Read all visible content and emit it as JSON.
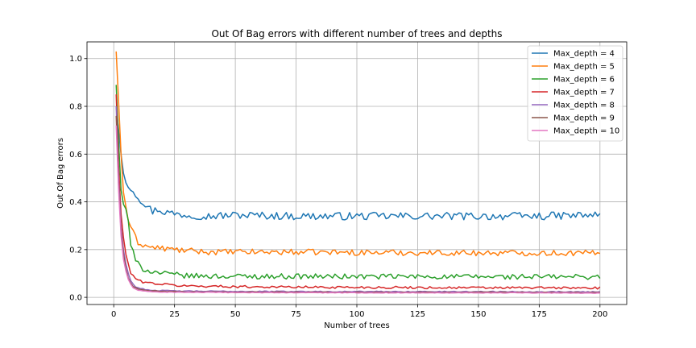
{
  "chart_data": {
    "type": "line",
    "title": "Out Of Bag errors with different number of trees and depths",
    "xlabel": "Number of trees",
    "ylabel": "Out Of Bag errors",
    "xlim": [
      -11,
      211
    ],
    "ylim": [
      -0.03,
      1.07
    ],
    "xticks": [
      0,
      25,
      50,
      75,
      100,
      125,
      150,
      175,
      200
    ],
    "yticks": [
      0.0,
      0.2,
      0.4,
      0.6,
      0.8,
      1.0
    ],
    "ytick_labels": [
      "0.0",
      "0.2",
      "0.4",
      "0.6",
      "0.8",
      "1.0"
    ],
    "grid": true,
    "legend_position": "top-right",
    "x_range": [
      1,
      200
    ],
    "series": [
      {
        "name": "Max_depth = 4",
        "color": "#1f77b4",
        "points": [
          [
            1,
            0.8
          ],
          [
            2,
            0.7
          ],
          [
            3,
            0.6
          ],
          [
            4,
            0.52
          ],
          [
            5,
            0.48
          ],
          [
            6,
            0.46
          ],
          [
            7,
            0.455
          ],
          [
            8,
            0.455
          ],
          [
            9,
            0.43
          ],
          [
            10,
            0.42
          ],
          [
            12,
            0.4
          ],
          [
            14,
            0.38
          ],
          [
            16,
            0.36
          ],
          [
            18,
            0.37
          ],
          [
            20,
            0.36
          ],
          [
            25,
            0.35
          ],
          [
            30,
            0.345
          ],
          [
            40,
            0.34
          ],
          [
            50,
            0.345
          ],
          [
            75,
            0.34
          ],
          [
            100,
            0.34
          ],
          [
            125,
            0.34
          ],
          [
            150,
            0.34
          ],
          [
            175,
            0.34
          ],
          [
            200,
            0.345
          ]
        ],
        "amp": 0.016
      },
      {
        "name": "Max_depth = 5",
        "color": "#ff7f0e",
        "points": [
          [
            1,
            1.03
          ],
          [
            2,
            0.82
          ],
          [
            3,
            0.6
          ],
          [
            4,
            0.44
          ],
          [
            5,
            0.38
          ],
          [
            6,
            0.32
          ],
          [
            7,
            0.3
          ],
          [
            8,
            0.27
          ],
          [
            9,
            0.25
          ],
          [
            10,
            0.23
          ],
          [
            12,
            0.22
          ],
          [
            15,
            0.21
          ],
          [
            20,
            0.205
          ],
          [
            25,
            0.2
          ],
          [
            30,
            0.195
          ],
          [
            40,
            0.19
          ],
          [
            50,
            0.19
          ],
          [
            75,
            0.19
          ],
          [
            100,
            0.188
          ],
          [
            125,
            0.187
          ],
          [
            150,
            0.186
          ],
          [
            175,
            0.186
          ],
          [
            200,
            0.185
          ]
        ],
        "amp": 0.012
      },
      {
        "name": "Max_depth = 6",
        "color": "#2ca02c",
        "points": [
          [
            1,
            0.89
          ],
          [
            2,
            0.65
          ],
          [
            3,
            0.45
          ],
          [
            4,
            0.39
          ],
          [
            5,
            0.37
          ],
          [
            6,
            0.32
          ],
          [
            7,
            0.22
          ],
          [
            8,
            0.19
          ],
          [
            9,
            0.15
          ],
          [
            10,
            0.14
          ],
          [
            12,
            0.12
          ],
          [
            15,
            0.11
          ],
          [
            20,
            0.1
          ],
          [
            25,
            0.095
          ],
          [
            30,
            0.09
          ],
          [
            50,
            0.088
          ],
          [
            75,
            0.088
          ],
          [
            100,
            0.087
          ],
          [
            125,
            0.087
          ],
          [
            150,
            0.086
          ],
          [
            175,
            0.086
          ],
          [
            200,
            0.086
          ]
        ],
        "amp": 0.011
      },
      {
        "name": "Max_depth = 7",
        "color": "#d62728",
        "points": [
          [
            1,
            0.85
          ],
          [
            2,
            0.55
          ],
          [
            3,
            0.35
          ],
          [
            4,
            0.25
          ],
          [
            5,
            0.18
          ],
          [
            6,
            0.14
          ],
          [
            7,
            0.1
          ],
          [
            8,
            0.09
          ],
          [
            9,
            0.08
          ],
          [
            10,
            0.07
          ],
          [
            12,
            0.065
          ],
          [
            15,
            0.06
          ],
          [
            20,
            0.055
          ],
          [
            25,
            0.05
          ],
          [
            30,
            0.048
          ],
          [
            50,
            0.045
          ],
          [
            75,
            0.043
          ],
          [
            100,
            0.042
          ],
          [
            125,
            0.041
          ],
          [
            150,
            0.04
          ],
          [
            175,
            0.04
          ],
          [
            200,
            0.039
          ]
        ],
        "amp": 0.005
      },
      {
        "name": "Max_depth = 8",
        "color": "#9467bd",
        "points": [
          [
            1,
            0.8
          ],
          [
            2,
            0.5
          ],
          [
            3,
            0.3
          ],
          [
            4,
            0.2
          ],
          [
            5,
            0.14
          ],
          [
            6,
            0.1
          ],
          [
            7,
            0.07
          ],
          [
            8,
            0.055
          ],
          [
            9,
            0.045
          ],
          [
            10,
            0.04
          ],
          [
            12,
            0.035
          ],
          [
            15,
            0.03
          ],
          [
            20,
            0.028
          ],
          [
            30,
            0.026
          ],
          [
            50,
            0.025
          ],
          [
            100,
            0.024
          ],
          [
            150,
            0.024
          ],
          [
            200,
            0.023
          ]
        ],
        "amp": 0.002
      },
      {
        "name": "Max_depth = 9",
        "color": "#8c564b",
        "points": [
          [
            1,
            0.76
          ],
          [
            2,
            0.47
          ],
          [
            3,
            0.28
          ],
          [
            4,
            0.18
          ],
          [
            5,
            0.12
          ],
          [
            6,
            0.08
          ],
          [
            7,
            0.06
          ],
          [
            8,
            0.045
          ],
          [
            9,
            0.04
          ],
          [
            10,
            0.035
          ],
          [
            12,
            0.03
          ],
          [
            15,
            0.027
          ],
          [
            20,
            0.025
          ],
          [
            30,
            0.023
          ],
          [
            50,
            0.022
          ],
          [
            100,
            0.021
          ],
          [
            150,
            0.021
          ],
          [
            200,
            0.02
          ]
        ],
        "amp": 0.0015
      },
      {
        "name": "Max_depth = 10",
        "color": "#e377c2",
        "points": [
          [
            1,
            0.72
          ],
          [
            2,
            0.45
          ],
          [
            3,
            0.26
          ],
          [
            4,
            0.16
          ],
          [
            5,
            0.11
          ],
          [
            6,
            0.075
          ],
          [
            7,
            0.055
          ],
          [
            8,
            0.04
          ],
          [
            9,
            0.035
          ],
          [
            10,
            0.03
          ],
          [
            12,
            0.026
          ],
          [
            15,
            0.024
          ],
          [
            20,
            0.022
          ],
          [
            30,
            0.021
          ],
          [
            50,
            0.02
          ],
          [
            100,
            0.019
          ],
          [
            150,
            0.019
          ],
          [
            200,
            0.018
          ]
        ],
        "amp": 0.0012
      }
    ]
  }
}
